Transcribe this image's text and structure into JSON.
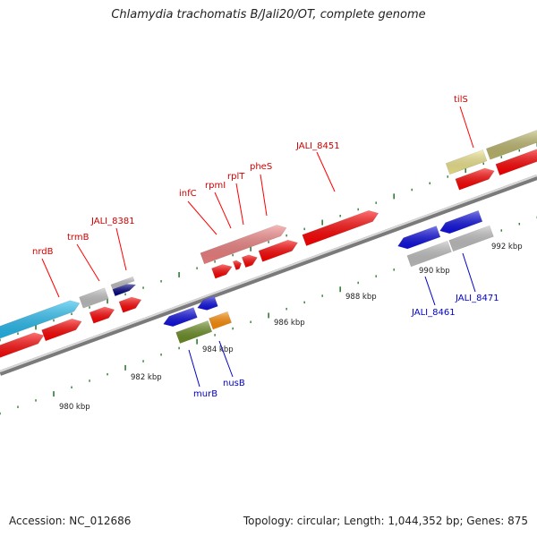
{
  "title": "Chlamydia trachomatis B/Jali20/OT, complete genome",
  "footer": {
    "accession": "Accession: NC_012686",
    "topology": "Topology: circular; Length: 1,044,352 bp; Genes: 875"
  },
  "colors": {
    "backbone": "#8c8c8c",
    "red": "#ff0000",
    "pink": "#f08080",
    "cyan": "#1ab8ee",
    "gray": "#c0c0c0",
    "navy": "#000080",
    "blue": "#1010e0",
    "olive": "#6b8e23",
    "orange": "#ff8c00",
    "khaki": "#f0e68c",
    "darkkhaki": "#bdb76b",
    "tick": "#2e7d32",
    "label_top": "#d00000",
    "label_bottom": "#0000c8"
  },
  "kbp_labels": [
    "980 kbp",
    "982 kbp",
    "984 kbp",
    "986 kbp",
    "988 kbp",
    "990 kbp",
    "992 kbp"
  ],
  "gene_labels_top": [
    "nrdB",
    "trmB",
    "JALI_8381",
    "infC",
    "rpmI",
    "rplT",
    "pheS",
    "JALI_8451",
    "tilS"
  ],
  "gene_labels_bottom": [
    "murB",
    "nusB",
    "JALI_8461",
    "JALI_8471"
  ]
}
